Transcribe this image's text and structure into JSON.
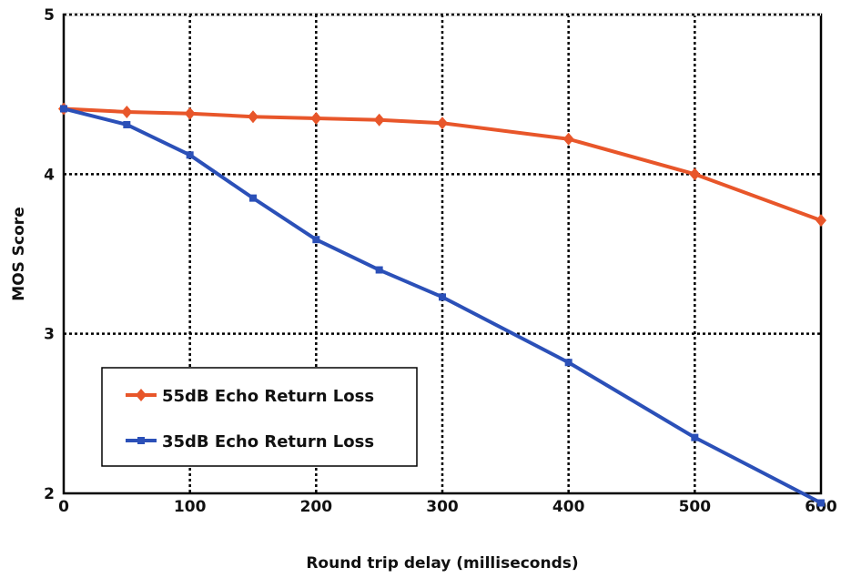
{
  "chart_data": {
    "type": "line",
    "title": "",
    "xlabel": "Round trip delay (milliseconds)",
    "ylabel": "MOS Score",
    "xlim": [
      0,
      600
    ],
    "ylim": [
      2,
      5
    ],
    "x_ticks": [
      0,
      100,
      200,
      300,
      400,
      500,
      600
    ],
    "y_ticks": [
      2,
      3,
      4,
      5
    ],
    "grid": true,
    "legend_position": "bottom-left",
    "series": [
      {
        "name": "55dB Echo Return Loss",
        "color": "#e8562a",
        "marker": "diamond",
        "x": [
          0,
          50,
          100,
          150,
          200,
          250,
          300,
          400,
          500,
          600
        ],
        "y": [
          4.41,
          4.39,
          4.38,
          4.36,
          4.35,
          4.34,
          4.32,
          4.22,
          4.0,
          3.71
        ]
      },
      {
        "name": "35dB Echo Return Loss",
        "color": "#2b50b8",
        "marker": "square",
        "x": [
          0,
          50,
          100,
          150,
          200,
          250,
          300,
          400,
          500,
          600
        ],
        "y": [
          4.41,
          4.31,
          4.12,
          3.85,
          3.59,
          3.4,
          3.23,
          2.82,
          2.35,
          1.94
        ]
      }
    ]
  }
}
